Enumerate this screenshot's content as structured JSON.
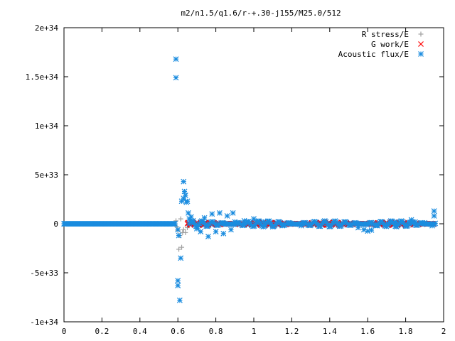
{
  "chart_data": {
    "type": "scatter",
    "title": "m2/n1.5/q1.6/r-+.30-j155/M25.0/512",
    "xlabel": "",
    "ylabel": "",
    "xlim": [
      0,
      2
    ],
    "ylim": [
      -1e+34,
      2e+34
    ],
    "grid": false,
    "legend_position": "top-right",
    "x_ticks": [
      {
        "value": 0,
        "label": "0"
      },
      {
        "value": 0.2,
        "label": "0.2"
      },
      {
        "value": 0.4,
        "label": "0.4"
      },
      {
        "value": 0.6,
        "label": "0.6"
      },
      {
        "value": 0.8,
        "label": "0.8"
      },
      {
        "value": 1.0,
        "label": "1"
      },
      {
        "value": 1.2,
        "label": "1.2"
      },
      {
        "value": 1.4,
        "label": "1.4"
      },
      {
        "value": 1.6,
        "label": "1.6"
      },
      {
        "value": 1.8,
        "label": "1.8"
      },
      {
        "value": 2.0,
        "label": "2"
      }
    ],
    "y_ticks": [
      {
        "value": -1e+34,
        "label": "-1e+34"
      },
      {
        "value": -5e+33,
        "label": "-5e+33"
      },
      {
        "value": 0,
        "label": "0"
      },
      {
        "value": 5e+33,
        "label": "5e+33"
      },
      {
        "value": 1e+34,
        "label": "1e+34"
      },
      {
        "value": 1.5e+34,
        "label": "1.5e+34"
      },
      {
        "value": 2e+34,
        "label": "2e+34"
      }
    ],
    "series": [
      {
        "name": "R stress/E",
        "color": "#a0a0a0",
        "marker": "plus",
        "points": [
          [
            0.0,
            0
          ],
          [
            0.1,
            0
          ],
          [
            0.2,
            0
          ],
          [
            0.3,
            0
          ],
          [
            0.4,
            0
          ],
          [
            0.5,
            0
          ],
          [
            0.55,
            0
          ],
          [
            0.59,
            3e+32
          ],
          [
            0.595,
            -3e+32
          ],
          [
            0.6,
            -7e+32
          ],
          [
            0.605,
            -2.6e+33
          ],
          [
            0.61,
            -1.2e+33
          ],
          [
            0.615,
            5e+32
          ],
          [
            0.62,
            -2.4e+33
          ],
          [
            0.625,
            -9e+32
          ],
          [
            0.63,
            -6e+32
          ],
          [
            0.64,
            -9e+32
          ],
          [
            0.65,
            -4e+32
          ],
          [
            0.66,
            2e+32
          ],
          [
            0.7,
            0
          ],
          [
            0.8,
            0
          ],
          [
            0.9,
            0
          ],
          [
            1.0,
            0
          ],
          [
            1.2,
            0
          ],
          [
            1.4,
            0
          ],
          [
            1.6,
            0
          ],
          [
            1.8,
            0
          ],
          [
            1.95,
            0
          ]
        ]
      },
      {
        "name": "G work/E",
        "color": "#ff0000",
        "marker": "cross",
        "segments": [
          {
            "x_start": 0.65,
            "x_end": 1.95,
            "step": 0.0025,
            "amp": 1.4e+32
          }
        ]
      },
      {
        "name": "Acoustic flux/E",
        "color": "#1a8cdf",
        "marker": "star",
        "points": [
          [
            0.59,
            1.68e+34
          ],
          [
            0.59,
            1.49e+34
          ],
          [
            0.6,
            -5.8e+33
          ],
          [
            0.6,
            -6.3e+33
          ],
          [
            0.61,
            -7.8e+33
          ],
          [
            0.615,
            -3.5e+33
          ],
          [
            0.605,
            -1.2e+33
          ],
          [
            0.6,
            -6e+32
          ],
          [
            0.62,
            2.3e+33
          ],
          [
            0.63,
            4.3e+33
          ],
          [
            0.635,
            3.3e+33
          ],
          [
            0.63,
            2.6e+33
          ],
          [
            0.64,
            2.9e+33
          ],
          [
            0.645,
            2.2e+33
          ],
          [
            0.65,
            2.3e+33
          ],
          [
            0.655,
            1.1e+33
          ],
          [
            0.66,
            5e+32
          ],
          [
            0.67,
            7e+32
          ],
          [
            0.68,
            3e+32
          ],
          [
            0.7,
            -5e+32
          ],
          [
            0.72,
            -8e+32
          ],
          [
            0.74,
            6e+32
          ],
          [
            0.76,
            -1.3e+33
          ],
          [
            0.78,
            1e+33
          ],
          [
            0.8,
            -8e+32
          ],
          [
            0.82,
            1.1e+33
          ],
          [
            0.84,
            -1e+33
          ],
          [
            0.86,
            8e+32
          ],
          [
            0.88,
            -6e+32
          ],
          [
            0.89,
            1.1e+33
          ],
          [
            0.9,
            2e+32
          ],
          [
            0.95,
            3e+32
          ],
          [
            1.0,
            5e+32
          ],
          [
            1.05,
            2e+32
          ],
          [
            1.1,
            -3e+32
          ],
          [
            1.15,
            -2e+32
          ],
          [
            1.25,
            -2e+32
          ],
          [
            1.3,
            -1e+32
          ],
          [
            1.45,
            -1e+32
          ],
          [
            1.5,
            -1e+32
          ],
          [
            1.55,
            -4e+32
          ],
          [
            1.58,
            -6e+32
          ],
          [
            1.6,
            -7.5e+32
          ],
          [
            1.62,
            -6.5e+32
          ],
          [
            1.65,
            -2e+32
          ],
          [
            1.7,
            -1e+32
          ],
          [
            1.75,
            2e+32
          ],
          [
            1.8,
            -2e+32
          ],
          [
            1.82,
            1e+32
          ],
          [
            1.83,
            4e+32
          ],
          [
            1.85,
            2e+32
          ],
          [
            1.9,
            1e+32
          ],
          [
            1.92,
            0
          ],
          [
            1.94,
            -2e+32
          ],
          [
            1.95,
            8e+32
          ],
          [
            1.95,
            1.3e+33
          ]
        ],
        "segments": [
          {
            "x_start": 0.0,
            "x_end": 0.585,
            "step": 0.0025,
            "amp": 0
          },
          {
            "x_start": 0.66,
            "x_end": 1.96,
            "step": 0.006,
            "amp": 3e+32
          }
        ]
      }
    ]
  }
}
